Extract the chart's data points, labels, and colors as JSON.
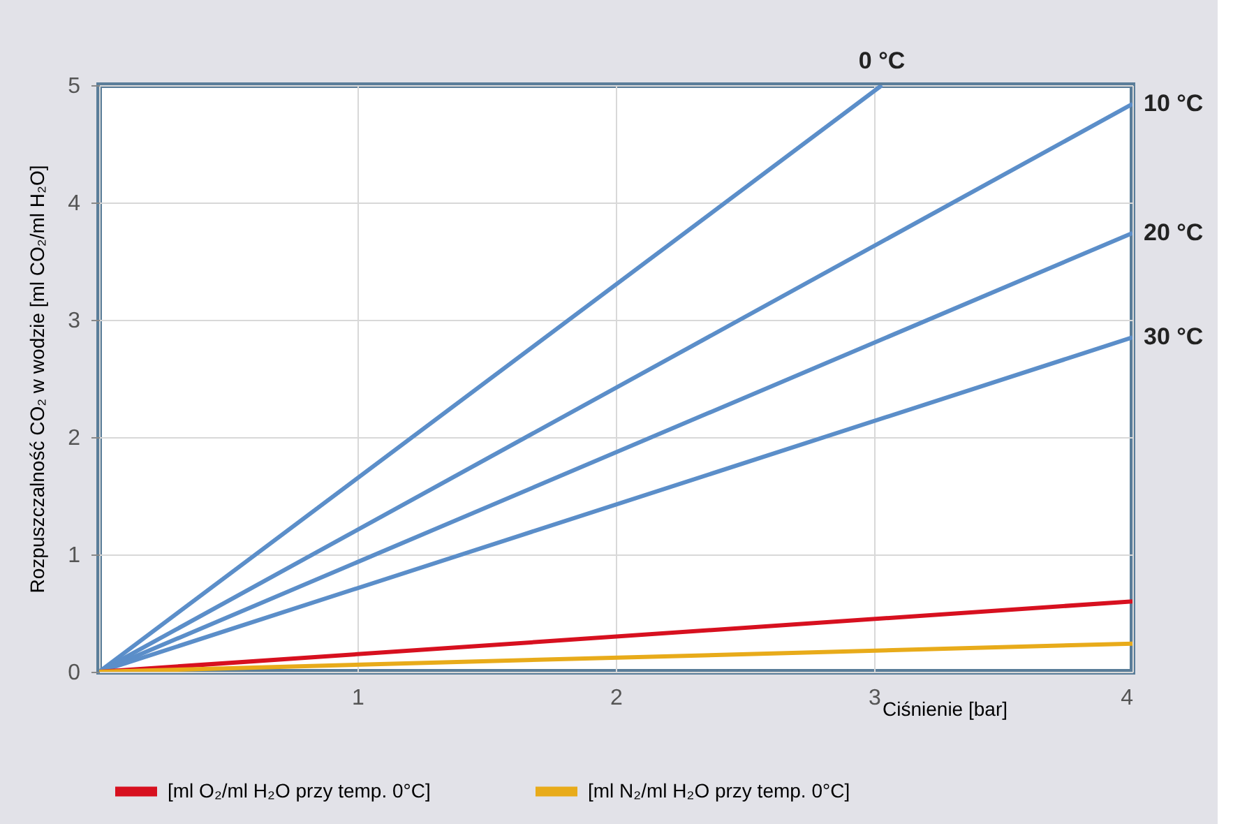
{
  "chart_data": {
    "type": "line",
    "xlabel": "Ciśnienie [bar]",
    "ylabel": "Rozpuszczalność CO₂ w wodzie [ml CO₂/ml H₂O]",
    "xlim": [
      0,
      4
    ],
    "xticks": [
      {
        "value": 0,
        "label": null
      },
      1,
      2,
      3,
      4
    ],
    "ylim": [
      0,
      5
    ],
    "yticks": [
      0,
      1,
      2,
      3,
      4,
      5
    ],
    "grid": true,
    "legend": "bottom",
    "marker": "none",
    "line_style": "solid",
    "series": [
      {
        "color": "#5b8ec9",
        "x": [
          0,
          3.03
        ],
        "values": [
          0,
          5
        ]
      },
      {
        "color": "#5b8ec9",
        "x": [
          0,
          4
        ],
        "values": [
          0,
          4.84
        ]
      },
      {
        "color": "#5b8ec9",
        "x": [
          0,
          4
        ],
        "values": [
          0,
          3.74
        ]
      },
      {
        "color": "#5b8ec9",
        "x": [
          0,
          4
        ],
        "values": [
          0,
          2.85
        ]
      },
      {
        "name": "[ml O₂/ml H₂O przy temp. 0°C]",
        "color": "#d7101f",
        "x": [
          0,
          4
        ],
        "values": [
          0,
          0.6
        ]
      },
      {
        "name": "[ml N₂/ml H₂O przy temp. 0°C]",
        "color": "#e8ab1a",
        "x": [
          0,
          4
        ],
        "values": [
          0,
          0.24
        ]
      }
    ],
    "annotations": [
      "0 °C",
      "10 °C",
      "20 °C",
      "30 °C"
    ]
  }
}
